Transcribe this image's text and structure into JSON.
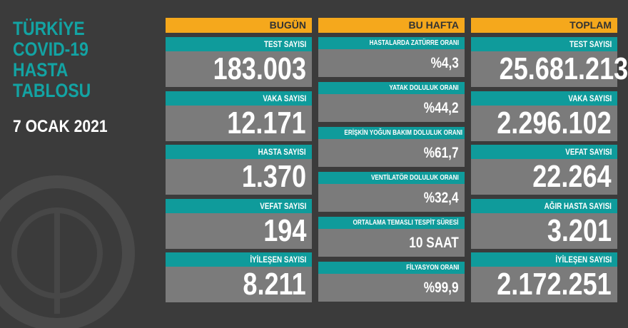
{
  "title": [
    "TÜRKİYE",
    "COVID-19",
    "HASTA",
    "TABLOSU"
  ],
  "date": "7 OCAK 2021",
  "columns": [
    {
      "header": "BUGÜN",
      "rows": [
        {
          "label": "TEST SAYISI",
          "value": "183.003"
        },
        {
          "label": "VAKA SAYISI",
          "value": "12.171"
        },
        {
          "label": "HASTA SAYISI",
          "value": "1.370"
        },
        {
          "label": "VEFAT SAYISI",
          "value": "194"
        },
        {
          "label": "İYİLEŞEN SAYISI",
          "value": "8.211"
        }
      ]
    },
    {
      "header": "BU HAFTA",
      "rows": [
        {
          "label": "HASTALARDA ZATÜRRE ORANI",
          "value": "%4,3"
        },
        {
          "label": "YATAK DOLULUK ORANI",
          "value": "%44,2"
        },
        {
          "label": "ERİŞKİN YOĞUN BAKIM DOLULUK ORANI",
          "value": "%61,7"
        },
        {
          "label": "VENTİLATÖR DOLULUK ORANI",
          "value": "%32,4"
        },
        {
          "label": "ORTALAMA TEMASLI TESPİT SÜRESİ",
          "value": "10 SAAT"
        },
        {
          "label": "FİLYASYON ORANI",
          "value": "%99,9"
        }
      ]
    },
    {
      "header": "TOPLAM",
      "rows": [
        {
          "label": "TEST SAYISI",
          "value": "25.681.213"
        },
        {
          "label": "VAKA SAYISI",
          "value": "2.296.102"
        },
        {
          "label": "VEFAT SAYISI",
          "value": "22.264"
        },
        {
          "label": "AĞIR HASTA SAYISI",
          "value": "3.201"
        },
        {
          "label": "İYİLEŞEN SAYISI",
          "value": "2.172.251"
        }
      ]
    }
  ]
}
